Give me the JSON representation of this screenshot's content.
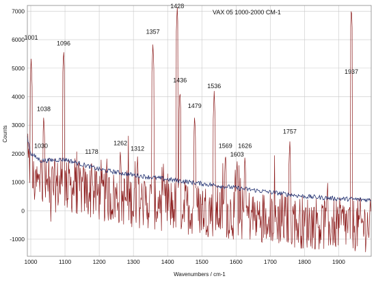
{
  "chart_data": {
    "type": "line",
    "title": "VAX 05 1000-2000 CM-1",
    "xlabel": "Wavenumbers / cm-1",
    "ylabel": "Counts",
    "xlim": [
      990,
      1995
    ],
    "ylim": [
      -1600,
      7200
    ],
    "x_ticks": [
      1000,
      1100,
      1200,
      1300,
      1400,
      1500,
      1600,
      1700,
      1800,
      1900
    ],
    "y_ticks": [
      -1000,
      0,
      1000,
      2000,
      3000,
      4000,
      5000,
      6000,
      7000
    ],
    "grid": true,
    "legend": "none",
    "colors": {
      "spectrum": "#8b1a1a",
      "baseline": "#1a2a6c",
      "grid": "#c8c8c8"
    },
    "peak_labels": [
      {
        "label": "1001",
        "x": 1001,
        "y": 6000
      },
      {
        "label": "1030",
        "x": 1030,
        "y": 2200
      },
      {
        "label": "1038",
        "x": 1038,
        "y": 3500
      },
      {
        "label": "1096",
        "x": 1096,
        "y": 5800
      },
      {
        "label": "1178",
        "x": 1178,
        "y": 2000
      },
      {
        "label": "1262",
        "x": 1262,
        "y": 2300
      },
      {
        "label": "1312",
        "x": 1312,
        "y": 2100
      },
      {
        "label": "1357",
        "x": 1357,
        "y": 6200
      },
      {
        "label": "1428",
        "x": 1428,
        "y": 7100
      },
      {
        "label": "1436",
        "x": 1436,
        "y": 4500
      },
      {
        "label": "1479",
        "x": 1479,
        "y": 3600
      },
      {
        "label": "1536",
        "x": 1536,
        "y": 4300
      },
      {
        "label": "1569",
        "x": 1569,
        "y": 2200
      },
      {
        "label": "1603",
        "x": 1603,
        "y": 1900
      },
      {
        "label": "1626",
        "x": 1626,
        "y": 2200
      },
      {
        "label": "1757",
        "x": 1757,
        "y": 2700
      },
      {
        "label": "1937",
        "x": 1937,
        "y": 4800
      }
    ],
    "series": [
      {
        "role": "spectrum",
        "peaks": [
          {
            "x": 1001,
            "y": 5400
          },
          {
            "x": 1030,
            "y": 2000
          },
          {
            "x": 1038,
            "y": 3400
          },
          {
            "x": 1096,
            "y": 5700
          },
          {
            "x": 1178,
            "y": 1800
          },
          {
            "x": 1262,
            "y": 2200
          },
          {
            "x": 1312,
            "y": 1900
          },
          {
            "x": 1357,
            "y": 5900
          },
          {
            "x": 1428,
            "y": 7200
          },
          {
            "x": 1436,
            "y": 4300
          },
          {
            "x": 1479,
            "y": 3400
          },
          {
            "x": 1536,
            "y": 4200
          },
          {
            "x": 1569,
            "y": 2100
          },
          {
            "x": 1603,
            "y": 1800
          },
          {
            "x": 1626,
            "y": 2000
          },
          {
            "x": 1757,
            "y": 2500
          },
          {
            "x": 1937,
            "y": 7200
          }
        ],
        "noise_level": [
          -1500,
          1200
        ]
      },
      {
        "role": "baseline",
        "points": [
          {
            "x": 990,
            "y": 2600
          },
          {
            "x": 1000,
            "y": 2000
          },
          {
            "x": 1030,
            "y": 1750
          },
          {
            "x": 1100,
            "y": 1800
          },
          {
            "x": 1200,
            "y": 1450
          },
          {
            "x": 1300,
            "y": 1250
          },
          {
            "x": 1400,
            "y": 1100
          },
          {
            "x": 1500,
            "y": 950
          },
          {
            "x": 1600,
            "y": 800
          },
          {
            "x": 1700,
            "y": 650
          },
          {
            "x": 1800,
            "y": 500
          },
          {
            "x": 1900,
            "y": 420
          },
          {
            "x": 1995,
            "y": 380
          }
        ]
      }
    ]
  }
}
